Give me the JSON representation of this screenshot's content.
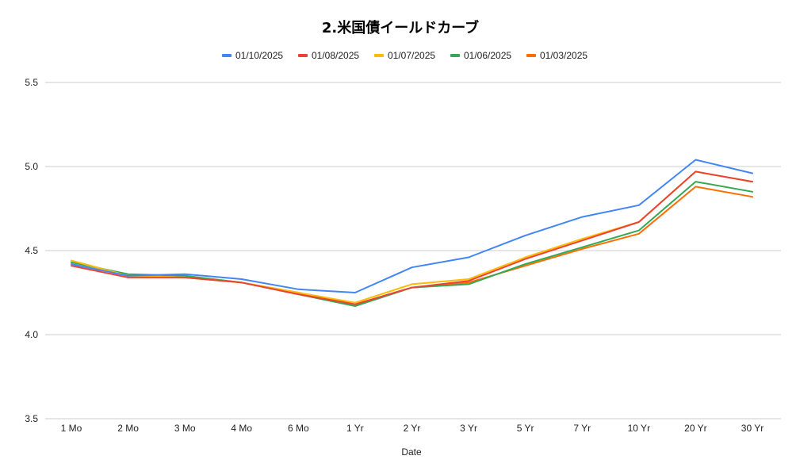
{
  "chart_data": {
    "type": "line",
    "title": "2.米国債イールドカーブ",
    "xlabel": "Date",
    "ylabel": "",
    "categories": [
      "1 Mo",
      "2 Mo",
      "3 Mo",
      "4 Mo",
      "6 Mo",
      "1 Yr",
      "2 Yr",
      "3 Yr",
      "5 Yr",
      "7 Yr",
      "10 Yr",
      "20 Yr",
      "30 Yr"
    ],
    "ylim": [
      3.5,
      5.5
    ],
    "yticks": [
      "3.5",
      "4.0",
      "4.5",
      "5.0",
      "5.5"
    ],
    "grid": true,
    "legend_position": "top",
    "series": [
      {
        "name": "01/10/2025",
        "color": "#4285f4",
        "values": [
          4.42,
          4.35,
          4.36,
          4.33,
          4.27,
          4.25,
          4.4,
          4.46,
          4.59,
          4.7,
          4.77,
          5.04,
          4.96
        ]
      },
      {
        "name": "01/08/2025",
        "color": "#ea4335",
        "values": [
          4.41,
          4.34,
          4.34,
          4.31,
          4.24,
          4.18,
          4.28,
          4.32,
          4.45,
          4.56,
          4.67,
          4.97,
          4.91
        ]
      },
      {
        "name": "01/07/2025",
        "color": "#fbbc04",
        "values": [
          4.44,
          4.35,
          4.34,
          4.31,
          4.25,
          4.19,
          4.3,
          4.33,
          4.46,
          4.57,
          4.67,
          4.97,
          4.91
        ]
      },
      {
        "name": "01/06/2025",
        "color": "#34a853",
        "values": [
          4.43,
          4.36,
          4.35,
          4.31,
          4.24,
          4.17,
          4.28,
          4.3,
          4.42,
          4.52,
          4.62,
          4.91,
          4.85
        ]
      },
      {
        "name": "01/03/2025",
        "color": "#ff6d01",
        "values": [
          4.44,
          4.35,
          4.34,
          4.31,
          4.25,
          4.18,
          4.28,
          4.31,
          4.41,
          4.51,
          4.6,
          4.88,
          4.82
        ]
      }
    ]
  }
}
